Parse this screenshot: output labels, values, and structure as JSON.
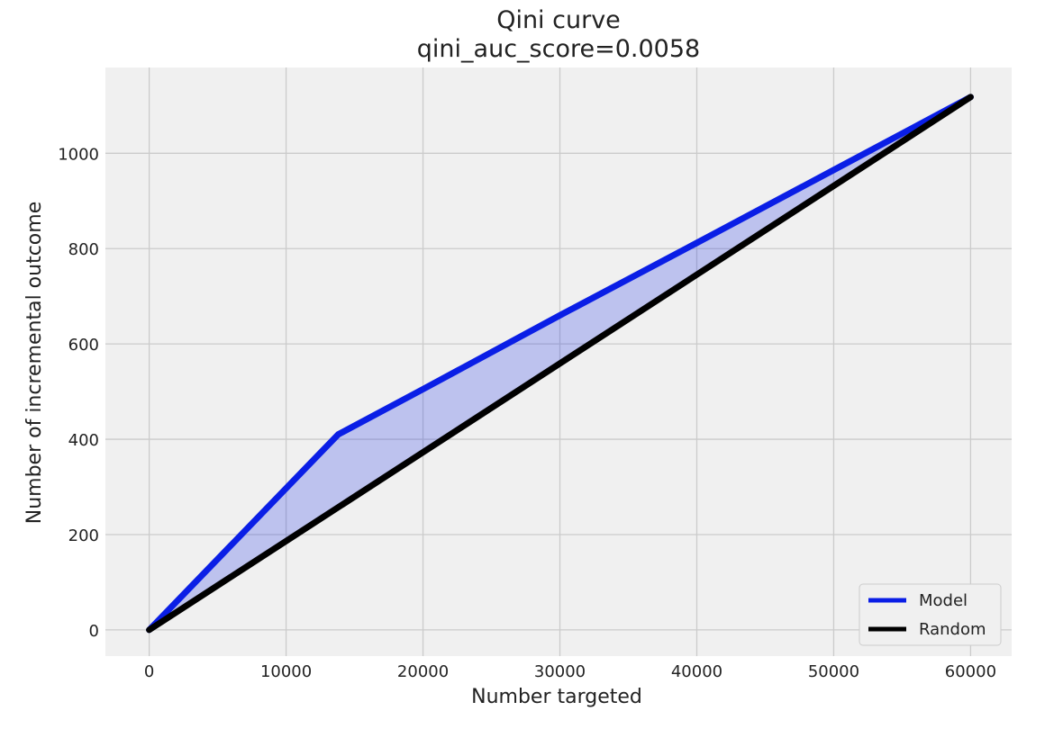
{
  "chart_data": {
    "type": "line",
    "title": "Qini curve",
    "subtitle": "qini_auc_score=0.0058",
    "xlabel": "Number targeted",
    "ylabel": "Number of incremental outcome",
    "xlim": [
      -3200,
      63000
    ],
    "ylim": [
      -55,
      1180
    ],
    "xticks": [
      0,
      10000,
      20000,
      30000,
      40000,
      50000,
      60000
    ],
    "yticks": [
      0,
      200,
      400,
      600,
      800,
      1000
    ],
    "xtick_labels": [
      "0",
      "10000",
      "20000",
      "30000",
      "40000",
      "50000",
      "60000"
    ],
    "ytick_labels": [
      "0",
      "200",
      "400",
      "600",
      "800",
      "1000"
    ],
    "grid": true,
    "legend_position": "lower-right",
    "series": [
      {
        "name": "Model",
        "color": "#0a1ee6",
        "x": [
          0,
          13800,
          20000,
          30000,
          40000,
          50000,
          60000
        ],
        "y": [
          0,
          410,
          505,
          660,
          812,
          965,
          1118
        ]
      },
      {
        "name": "Random",
        "color": "#000000",
        "x": [
          0,
          60000
        ],
        "y": [
          0,
          1118
        ]
      }
    ],
    "fill_between": {
      "upper": "Model",
      "lower": "Random",
      "color": "#0a1ee6",
      "opacity": 0.22
    }
  }
}
